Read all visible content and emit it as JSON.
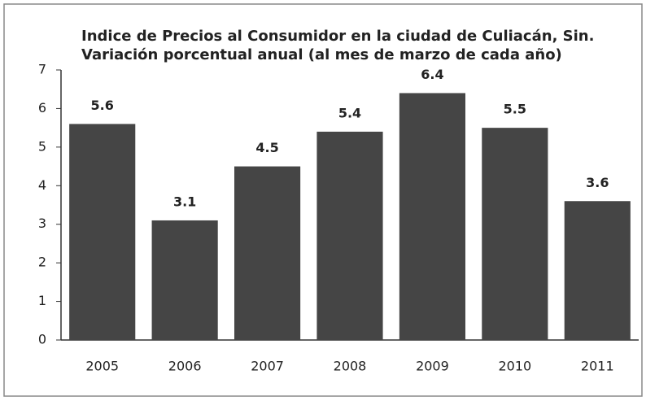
{
  "chart_data": {
    "type": "bar",
    "title": "Indice de Precios al Consumidor en la ciudad de Culiacán, Sin.",
    "subtitle": "Variación porcentual anual (al mes de marzo de cada año)",
    "categories": [
      "2005",
      "2006",
      "2007",
      "2008",
      "2009",
      "2010",
      "2011"
    ],
    "values": [
      5.6,
      3.1,
      4.5,
      5.4,
      6.4,
      5.5,
      3.6
    ],
    "color": "#454545",
    "ylim": [
      0,
      7
    ],
    "yticks": [
      0,
      1,
      2,
      3,
      4,
      5,
      6,
      7
    ],
    "grid": false
  }
}
